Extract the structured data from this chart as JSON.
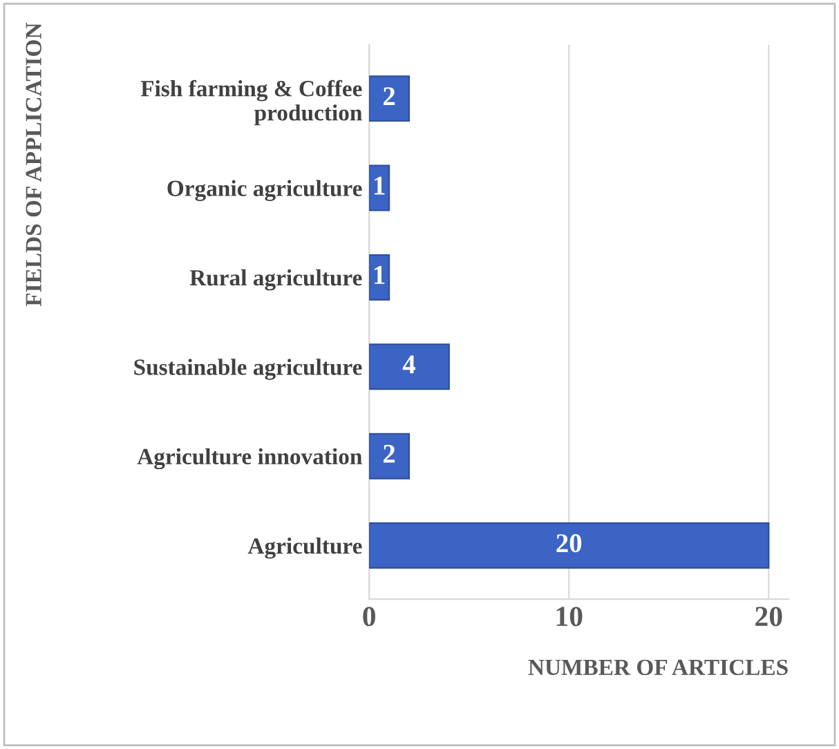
{
  "chart_data": {
    "type": "bar",
    "orientation": "horizontal",
    "categories": [
      "Fish farming & Coffee\nproduction",
      "Organic agriculture",
      "Rural agriculture",
      "Sustainable agriculture",
      "Agriculture innovation",
      "Agriculture"
    ],
    "values": [
      2,
      1,
      1,
      4,
      2,
      20
    ],
    "color": "#3b64c4",
    "xlim": [
      0,
      21
    ],
    "xticks": [
      0,
      10,
      20
    ],
    "xlabel": "NUMBER OF ARTICLES",
    "ylabel": "FIELDS OF APPLICATION",
    "grid": "x",
    "data_labels": true,
    "legend": false
  }
}
